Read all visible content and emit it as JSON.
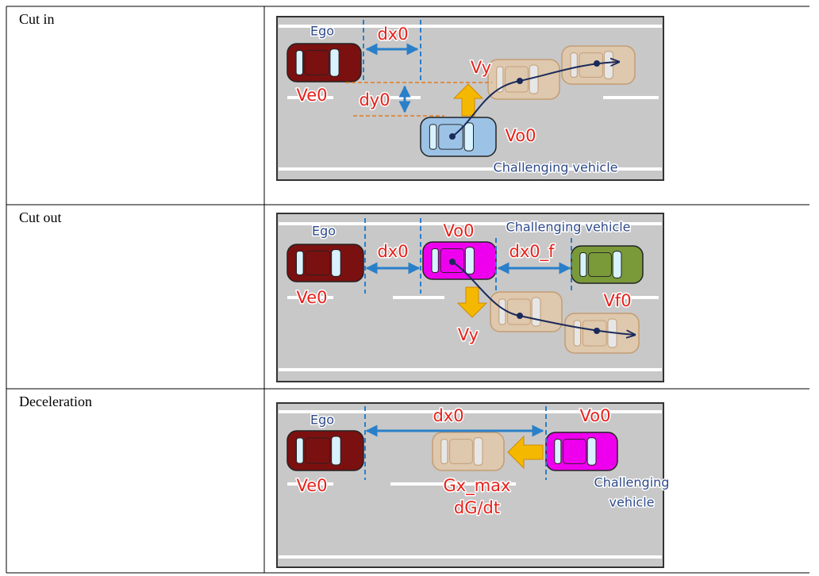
{
  "table": {
    "rows": [
      {
        "label": "Cut in",
        "diagram": {
          "ego": "Ego",
          "dx0": "dx0",
          "vy": "Vy",
          "dy0": "dy0",
          "ve0": "Ve0",
          "vo0": "Vo0",
          "challenging": "Challenging vehicle"
        }
      },
      {
        "label": "Cut out",
        "diagram": {
          "ego": "Ego",
          "vo0": "Vo0",
          "challenging": "Challenging vehicle",
          "dx0": "dx0",
          "dx0_f": "dx0_f",
          "ve0": "Ve0",
          "vf0": "Vf0",
          "vy": "Vy"
        }
      },
      {
        "label": "Deceleration",
        "diagram": {
          "ego": "Ego",
          "dx0": "dx0",
          "vo0": "Vo0",
          "ve0": "Ve0",
          "gx_max": "Gx_max",
          "dgdt": "dG/dt",
          "challenging_1": "Challenging",
          "challenging_2": "vehicle"
        }
      }
    ]
  }
}
